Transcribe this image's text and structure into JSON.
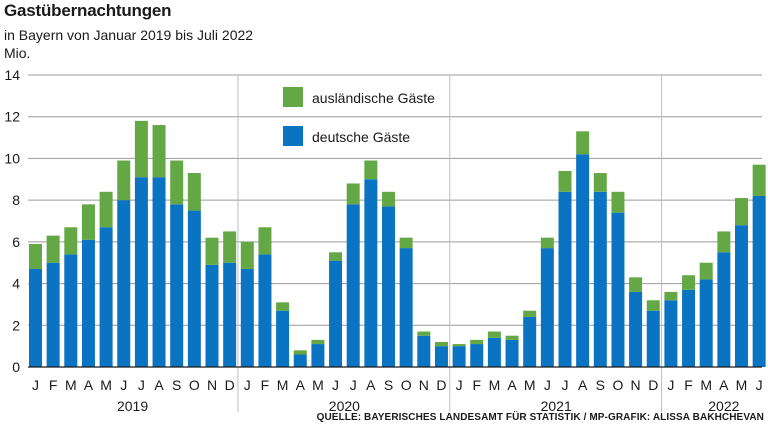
{
  "title": "Gastübernachtungen",
  "subtitle": "in Bayern von Januar 2019 bis Juli 2022",
  "unit": "Mio.",
  "source": "QUELLE: BAYERISCHES LANDESAMT FÜR STATISTIK / MP-GRAFIK: ALISSA BAKHCHEVAN",
  "colors": {
    "deutsche": "#0a73c2",
    "auslaendische": "#64a845",
    "grid": "#9a9a9a",
    "separator": "#bdbdbd"
  },
  "chart_data": {
    "type": "bar",
    "stacked": true,
    "ylim": [
      0,
      14
    ],
    "yticks": [
      0,
      2,
      4,
      6,
      8,
      10,
      12,
      14
    ],
    "grid": true,
    "legend_position": "top-center",
    "month_labels": [
      "J",
      "F",
      "M",
      "A",
      "M",
      "J",
      "J",
      "A",
      "S",
      "O",
      "N",
      "D",
      "J",
      "F",
      "M",
      "A",
      "M",
      "J",
      "J",
      "A",
      "S",
      "O",
      "N",
      "D",
      "J",
      "F",
      "M",
      "A",
      "M",
      "J",
      "J",
      "A",
      "S",
      "O",
      "N",
      "D",
      "J",
      "F",
      "M",
      "A",
      "M",
      "J",
      "J"
    ],
    "year_labels": [
      "2019",
      "2020",
      "2021",
      "2022"
    ],
    "series": [
      {
        "name": "deutsche Gäste",
        "values": [
          4.7,
          5.0,
          5.4,
          6.1,
          6.7,
          8.0,
          9.1,
          9.1,
          7.8,
          7.5,
          4.9,
          5.0,
          4.7,
          5.4,
          2.7,
          0.6,
          1.1,
          5.1,
          7.8,
          9.0,
          7.7,
          5.7,
          1.5,
          1.0,
          1.0,
          1.1,
          1.4,
          1.3,
          2.4,
          5.7,
          8.4,
          10.2,
          8.4,
          7.4,
          3.6,
          2.7,
          3.2,
          3.7,
          4.2,
          5.5,
          6.8,
          8.2,
          9.2
        ]
      },
      {
        "name": "ausländische Gäste",
        "values": [
          1.2,
          1.3,
          1.3,
          1.7,
          1.7,
          1.9,
          2.7,
          2.5,
          2.1,
          1.8,
          1.3,
          1.5,
          1.3,
          1.3,
          0.4,
          0.2,
          0.2,
          0.4,
          1.0,
          0.9,
          0.7,
          0.5,
          0.2,
          0.2,
          0.1,
          0.2,
          0.3,
          0.2,
          0.3,
          0.5,
          1.0,
          1.1,
          0.9,
          1.0,
          0.7,
          0.5,
          0.4,
          0.7,
          0.8,
          1.0,
          1.3,
          1.5,
          2.2
        ]
      }
    ]
  }
}
